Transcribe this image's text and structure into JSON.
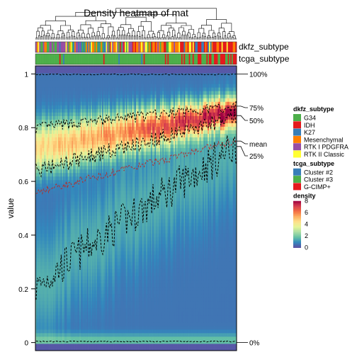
{
  "chart_data": {
    "type": "heatmap",
    "title": "Density heatmap of mat",
    "ylabel": "value",
    "ylim": [
      -0.03,
      1.03
    ],
    "y_ticks": [
      0,
      0.2,
      0.4,
      0.6,
      0.8,
      1
    ],
    "n_columns": 160,
    "annotation_rows": [
      "dkfz_subtype",
      "tcga_subtype"
    ],
    "quantile_labels": [
      {
        "label": "100%",
        "value": 1.0
      },
      {
        "label": "75%",
        "value": 0.88
      },
      {
        "label": "50%",
        "value": 0.845
      },
      {
        "label": "mean",
        "value": 0.75
      },
      {
        "label": "25%",
        "value": 0.73
      },
      {
        "label": "0%",
        "value": 0.0
      }
    ],
    "legends": {
      "dkfz_subtype": {
        "title": "dkfz_subtype",
        "entries": [
          {
            "label": "G34",
            "color": "#4daf4a"
          },
          {
            "label": "IDH",
            "color": "#e41a1c"
          },
          {
            "label": "K27",
            "color": "#377eb8"
          },
          {
            "label": "Mesenchymal",
            "color": "#ff7f00"
          },
          {
            "label": "RTK I PDGFRA",
            "color": "#984ea3"
          },
          {
            "label": "RTK II Classic",
            "color": "#ffff33"
          }
        ]
      },
      "tcga_subtype": {
        "title": "tcga_subtype",
        "entries": [
          {
            "label": "Cluster #2",
            "color": "#377eb8"
          },
          {
            "label": "Cluster #3",
            "color": "#4daf4a"
          },
          {
            "label": "G-CIMP+",
            "color": "#e41a1c"
          }
        ]
      },
      "density": {
        "title": "density",
        "range": [
          0,
          8
        ],
        "ticks": [
          "0",
          "2",
          "4",
          "6",
          "8"
        ],
        "colors": [
          "#5e4fa2",
          "#3288bd",
          "#66c2a5",
          "#abdda4",
          "#e6f598",
          "#fee08b",
          "#fdae61",
          "#f46d43",
          "#d53e4f",
          "#9e0142"
        ]
      }
    }
  }
}
